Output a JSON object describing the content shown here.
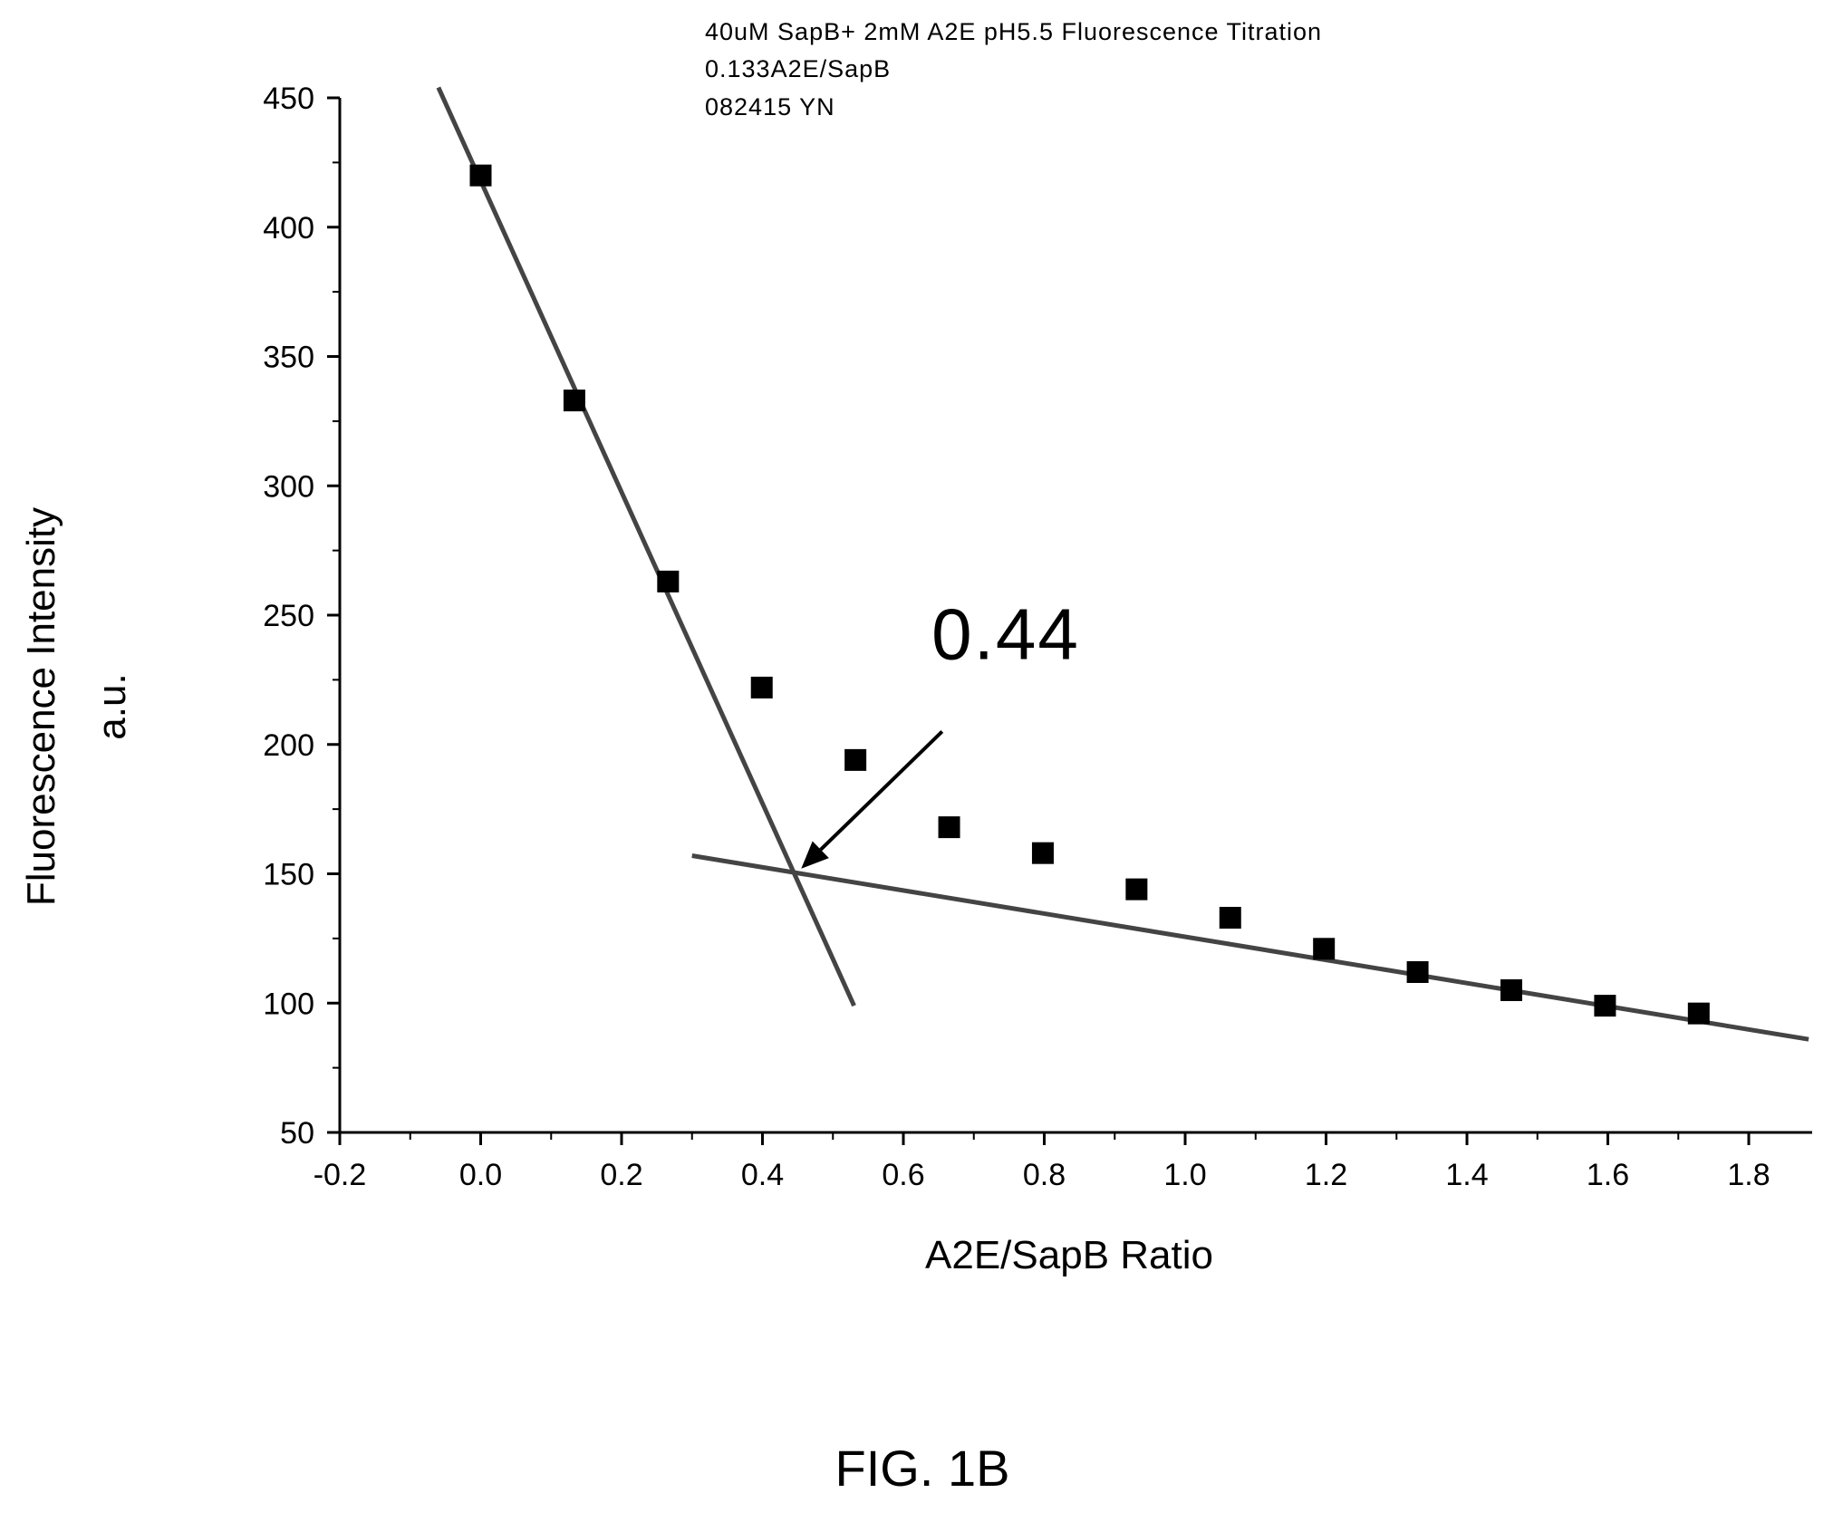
{
  "figure_label": "FIG. 1B",
  "chart_data": {
    "type": "scatter",
    "notes": [
      "40uM SapB+ 2mM A2E pH5.5 Fluorescence Titration",
      "0.133A2E/SapB",
      "082415 YN"
    ],
    "xlabel": "A2E/SapB Ratio",
    "ylabel_lines": [
      "Fluorescence Intensity",
      "a.u."
    ],
    "xlim": [
      -0.2,
      1.89
    ],
    "ylim": [
      50,
      450
    ],
    "x_ticks": [
      "-0.2",
      "0.0",
      "0.2",
      "0.4",
      "0.6",
      "0.8",
      "1.0",
      "1.2",
      "1.4",
      "1.6",
      "1.8"
    ],
    "x_tick_values": [
      -0.2,
      0.0,
      0.2,
      0.4,
      0.6,
      0.8,
      1.0,
      1.2,
      1.4,
      1.6,
      1.8
    ],
    "y_ticks": [
      "50",
      "100",
      "150",
      "200",
      "250",
      "300",
      "350",
      "400",
      "450"
    ],
    "y_tick_values": [
      50,
      100,
      150,
      200,
      250,
      300,
      350,
      400,
      450
    ],
    "points": [
      {
        "x": 0.0,
        "y": 420
      },
      {
        "x": 0.133,
        "y": 333
      },
      {
        "x": 0.266,
        "y": 263
      },
      {
        "x": 0.399,
        "y": 222
      },
      {
        "x": 0.532,
        "y": 194
      },
      {
        "x": 0.665,
        "y": 168
      },
      {
        "x": 0.798,
        "y": 158
      },
      {
        "x": 0.931,
        "y": 144
      },
      {
        "x": 1.064,
        "y": 133
      },
      {
        "x": 1.197,
        "y": 121
      },
      {
        "x": 1.33,
        "y": 112
      },
      {
        "x": 1.463,
        "y": 105
      },
      {
        "x": 1.596,
        "y": 99
      },
      {
        "x": 1.729,
        "y": 96
      }
    ],
    "fit_lines": [
      {
        "x1": -0.06,
        "y1": 454,
        "x2": 0.53,
        "y2": 99
      },
      {
        "x1": 0.3,
        "y1": 157,
        "x2": 1.885,
        "y2": 86
      }
    ],
    "annotation": {
      "text": "0.44",
      "text_x": 0.64,
      "text_y": 233,
      "arrow_from": [
        0.655,
        205
      ],
      "arrow_to": [
        0.455,
        152
      ]
    },
    "grid": false,
    "legend": "none"
  }
}
